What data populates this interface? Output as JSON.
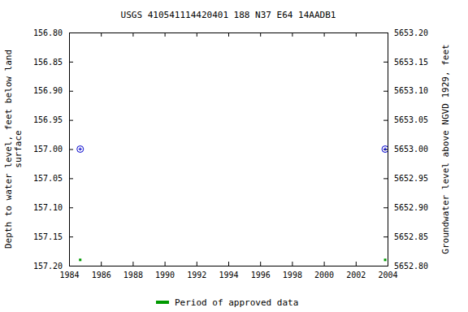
{
  "chart_data": {
    "type": "scatter",
    "title": "USGS 410541114420401 188  N37 E64 14AADB1",
    "ylabel": "Depth to water level, feet below land\nsurface",
    "y2label": "Groundwater level above NGVD 1929, feet",
    "xlim": [
      1984,
      2004
    ],
    "xticks": [
      1984,
      1986,
      1988,
      1990,
      1992,
      1994,
      1996,
      1998,
      2000,
      2002,
      2004
    ],
    "ylim": [
      157.2,
      156.8
    ],
    "yticks": [
      {
        "value": 156.8,
        "label": "156.80"
      },
      {
        "value": 156.85,
        "label": "156.85"
      },
      {
        "value": 156.9,
        "label": "156.90"
      },
      {
        "value": 156.95,
        "label": "156.95"
      },
      {
        "value": 157,
        "label": "157.00"
      },
      {
        "value": 157.05,
        "label": "157.05"
      },
      {
        "value": 157.1,
        "label": "157.10"
      },
      {
        "value": 157.15,
        "label": "157.15"
      },
      {
        "value": 157.2,
        "label": "157.20"
      }
    ],
    "y2lim": [
      5652.8,
      5653.2
    ],
    "y2ticks": [
      {
        "value": 5652.8,
        "label": "5652.80"
      },
      {
        "value": 5652.85,
        "label": "5652.85"
      },
      {
        "value": 5652.9,
        "label": "5652.90"
      },
      {
        "value": 5652.95,
        "label": "5652.95"
      },
      {
        "value": 5653,
        "label": "5653.00"
      },
      {
        "value": 5653.05,
        "label": "5653.05"
      },
      {
        "value": 5653.1,
        "label": "5653.10"
      },
      {
        "value": 5653.15,
        "label": "5653.15"
      },
      {
        "value": 5653.2,
        "label": "5653.20"
      }
    ],
    "grid": false,
    "series": [
      {
        "color": "#0000cc",
        "marker": "circle",
        "x": [
          1984.7,
          2003.85
        ],
        "values": [
          157,
          157
        ]
      },
      {
        "name": "Period of approved data",
        "color": "#009900",
        "marker": "square",
        "x": [
          1984.7,
          2003.85
        ],
        "values": [
          157.19,
          157.19
        ]
      }
    ]
  }
}
